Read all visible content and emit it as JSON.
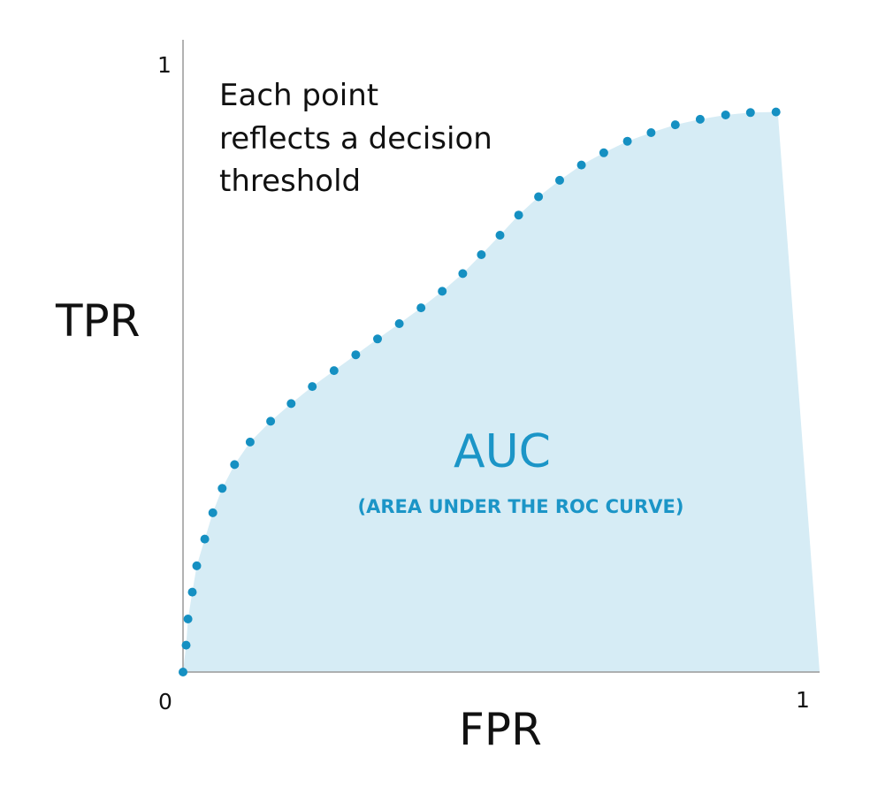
{
  "chart_data": {
    "type": "scatter",
    "xlabel": "FPR",
    "ylabel": "TPR",
    "xlim": [
      0,
      1
    ],
    "ylim": [
      0,
      1
    ],
    "x_ticks": [
      "0",
      "1"
    ],
    "y_ticks": [
      "1"
    ],
    "grid": false,
    "annotation": [
      "Each point",
      "reflects a decision",
      "threshold"
    ],
    "area_label": "AUC",
    "area_sublabel": "(AREA UNDER THE ROC CURVE)",
    "colors": {
      "points": "#1590c2",
      "area_fill": "#d6ecf5",
      "area_text": "#1b95c7",
      "axis": "#999999"
    },
    "series": [
      {
        "points": [
          {
            "x": 0.0,
            "y": 0.0
          },
          {
            "x": 0.005,
            "y": 0.044
          },
          {
            "x": 0.008,
            "y": 0.087
          },
          {
            "x": 0.015,
            "y": 0.131
          },
          {
            "x": 0.022,
            "y": 0.174
          },
          {
            "x": 0.035,
            "y": 0.218
          },
          {
            "x": 0.048,
            "y": 0.261
          },
          {
            "x": 0.063,
            "y": 0.301
          },
          {
            "x": 0.083,
            "y": 0.34
          },
          {
            "x": 0.108,
            "y": 0.377
          },
          {
            "x": 0.141,
            "y": 0.411
          },
          {
            "x": 0.174,
            "y": 0.44
          },
          {
            "x": 0.208,
            "y": 0.468
          },
          {
            "x": 0.243,
            "y": 0.494
          },
          {
            "x": 0.278,
            "y": 0.52
          },
          {
            "x": 0.313,
            "y": 0.546
          },
          {
            "x": 0.348,
            "y": 0.571
          },
          {
            "x": 0.383,
            "y": 0.597
          },
          {
            "x": 0.417,
            "y": 0.624
          },
          {
            "x": 0.45,
            "y": 0.653
          },
          {
            "x": 0.48,
            "y": 0.684
          },
          {
            "x": 0.51,
            "y": 0.716
          },
          {
            "x": 0.54,
            "y": 0.749
          },
          {
            "x": 0.572,
            "y": 0.779
          },
          {
            "x": 0.606,
            "y": 0.806
          },
          {
            "x": 0.641,
            "y": 0.831
          },
          {
            "x": 0.677,
            "y": 0.851
          },
          {
            "x": 0.715,
            "y": 0.87
          },
          {
            "x": 0.753,
            "y": 0.884
          },
          {
            "x": 0.792,
            "y": 0.897
          },
          {
            "x": 0.832,
            "y": 0.906
          },
          {
            "x": 0.873,
            "y": 0.913
          },
          {
            "x": 0.913,
            "y": 0.917
          },
          {
            "x": 0.954,
            "y": 0.918
          }
        ]
      }
    ]
  }
}
